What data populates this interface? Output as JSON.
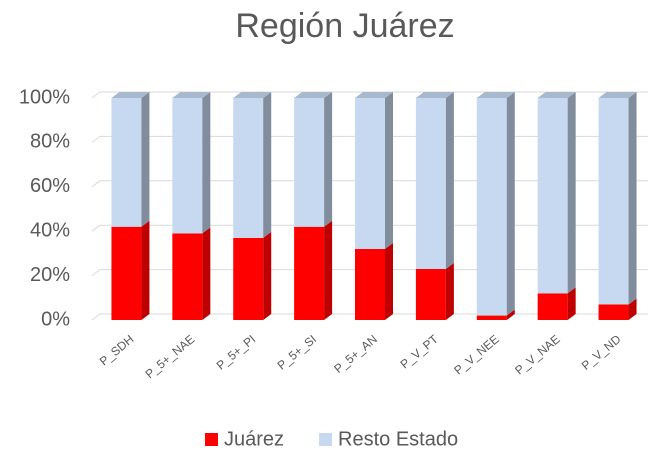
{
  "chart_data": {
    "type": "stacked_bar_3d",
    "title": "Región Juárez",
    "categories": [
      "P_SDH",
      "P_5+_NAE",
      "P_5+_PI",
      "P_5+_SI",
      "P_5+_AN",
      "P_V_PT",
      "P_V_NEE",
      "P_V_NAE",
      "P_V_ND"
    ],
    "series": [
      {
        "name": "Juárez",
        "color": "#ff0000",
        "values": [
          42,
          39,
          37,
          42,
          32,
          23,
          2,
          12,
          7
        ]
      },
      {
        "name": "Resto Estado",
        "color": "#c6d9f1",
        "values": [
          58,
          61,
          63,
          58,
          68,
          77,
          98,
          88,
          93
        ]
      }
    ],
    "ylim": [
      0,
      100
    ],
    "yticks": [
      {
        "value": 0,
        "label": "0%"
      },
      {
        "value": 20,
        "label": "20%"
      },
      {
        "value": 40,
        "label": "40%"
      },
      {
        "value": 60,
        "label": "60%"
      },
      {
        "value": 80,
        "label": "80%"
      },
      {
        "value": 100,
        "label": "100%"
      }
    ],
    "grid": true,
    "legend": "bottom"
  }
}
